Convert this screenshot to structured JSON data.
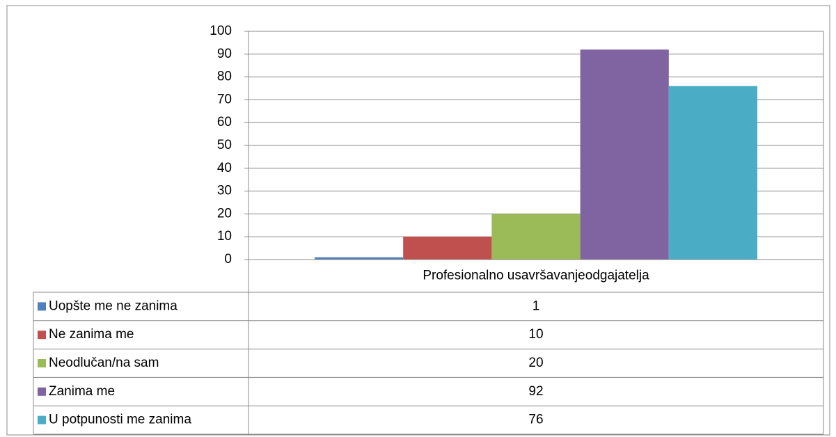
{
  "chart_data": {
    "type": "bar",
    "categories": [
      "Profesionalno usavršavanjeodgajatelja"
    ],
    "series": [
      {
        "name": "Uopšte me ne zanima",
        "color": "#4f81bd",
        "values": [
          1
        ]
      },
      {
        "name": "Ne zanima me",
        "color": "#c0504d",
        "values": [
          10
        ]
      },
      {
        "name": "Neodlučan/na sam",
        "color": "#9bbb59",
        "values": [
          20
        ]
      },
      {
        "name": "Zanima me",
        "color": "#8064a2",
        "values": [
          92
        ]
      },
      {
        "name": "U potpunosti me zanima",
        "color": "#4bacc6",
        "values": [
          76
        ]
      }
    ],
    "ylim": [
      0,
      100
    ],
    "yticks": [
      0,
      10,
      20,
      30,
      40,
      50,
      60,
      70,
      80,
      90,
      100
    ],
    "grid": true
  }
}
